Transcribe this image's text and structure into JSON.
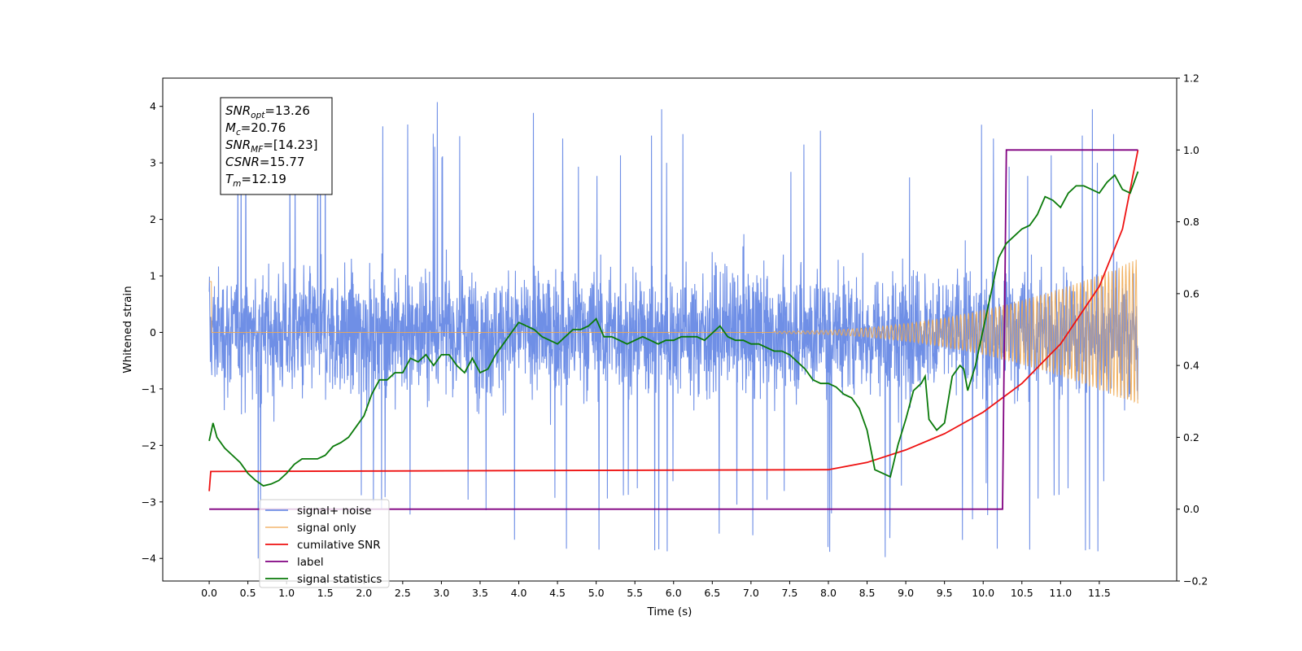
{
  "chart_data": {
    "type": "line",
    "xlabel": "Time (s)",
    "ylabel": "Whitened strain",
    "xlim": [
      -0.6,
      12.5
    ],
    "ylim": [
      -4.4,
      4.5
    ],
    "y2lim": [
      -0.2,
      1.2
    ],
    "x_ticks": [
      "0.0",
      "0.5",
      "1.0",
      "1.5",
      "2.0",
      "2.5",
      "3.0",
      "3.5",
      "4.0",
      "4.5",
      "5.0",
      "5.5",
      "6.0",
      "6.5",
      "7.0",
      "7.5",
      "8.0",
      "8.5",
      "9.0",
      "9.5",
      "10.0",
      "10.5",
      "11.0",
      "11.5"
    ],
    "y_ticks": [
      "−4",
      "−3",
      "−2",
      "−1",
      "0",
      "1",
      "2",
      "3",
      "4"
    ],
    "y2_ticks": [
      "−0.2",
      "0.0",
      "0.2",
      "0.4",
      "0.6",
      "0.8",
      "1.0",
      "1.2"
    ],
    "grid": false,
    "legend_position": "lower-left",
    "annotation": {
      "lines": [
        {
          "sym": "SNR",
          "sub": "opt",
          "val": "=13.26"
        },
        {
          "sym": "M",
          "sub": "c",
          "val": "=20.76"
        },
        {
          "sym": "SNR",
          "sub": "MF",
          "val": "=[14.23]"
        },
        {
          "sym": "CSNR",
          "sub": "",
          "val": "=15.77"
        },
        {
          "sym": "T",
          "sub": "m",
          "val": "=12.19"
        }
      ]
    },
    "colors": {
      "noise": "#6f8fe6",
      "signal": "#f0a850",
      "csnr": "#ee1111",
      "label": "#800080",
      "stats": "#0a7a0a"
    },
    "series": [
      {
        "name": "signal+ noise",
        "axis": "left",
        "description_values": {
          "x_range": [
            0.0,
            12.0
          ],
          "envelope_typical": [
            -2.2,
            2.2
          ],
          "spike_max": 4.1,
          "spike_min": -4.0
        }
      },
      {
        "name": "signal only",
        "axis": "left",
        "description_values": {
          "x_range": [
            0.0,
            12.0
          ],
          "zero_until": 7.5,
          "final_amplitude": 1.3
        }
      },
      {
        "name": "cumilative SNR",
        "axis": "right",
        "x": [
          0.0,
          0.02,
          8.0,
          8.5,
          9.0,
          9.5,
          10.0,
          10.5,
          11.0,
          11.5,
          11.8,
          12.0
        ],
        "values": [
          0.05,
          0.105,
          0.11,
          0.13,
          0.165,
          0.21,
          0.27,
          0.35,
          0.46,
          0.62,
          0.78,
          1.0
        ]
      },
      {
        "name": "label",
        "axis": "right",
        "x": [
          0.0,
          10.25,
          10.3,
          12.0
        ],
        "values": [
          0.0,
          0.0,
          1.0,
          1.0
        ]
      },
      {
        "name": "signal statistics",
        "axis": "right",
        "x": [
          0.0,
          0.05,
          0.1,
          0.2,
          0.3,
          0.4,
          0.5,
          0.6,
          0.7,
          0.8,
          0.9,
          1.0,
          1.1,
          1.2,
          1.3,
          1.4,
          1.5,
          1.6,
          1.7,
          1.8,
          1.9,
          2.0,
          2.1,
          2.2,
          2.3,
          2.4,
          2.5,
          2.6,
          2.7,
          2.8,
          2.9,
          3.0,
          3.1,
          3.2,
          3.3,
          3.4,
          3.5,
          3.6,
          3.7,
          3.8,
          3.9,
          4.0,
          4.1,
          4.2,
          4.3,
          4.4,
          4.5,
          4.6,
          4.7,
          4.8,
          4.9,
          5.0,
          5.1,
          5.2,
          5.3,
          5.4,
          5.5,
          5.6,
          5.7,
          5.8,
          5.9,
          6.0,
          6.1,
          6.2,
          6.3,
          6.4,
          6.5,
          6.6,
          6.7,
          6.8,
          6.9,
          7.0,
          7.1,
          7.2,
          7.3,
          7.4,
          7.5,
          7.6,
          7.7,
          7.8,
          7.9,
          8.0,
          8.1,
          8.2,
          8.3,
          8.4,
          8.5,
          8.6,
          8.7,
          8.8,
          8.9,
          9.0,
          9.1,
          9.2,
          9.25,
          9.3,
          9.4,
          9.5,
          9.6,
          9.7,
          9.75,
          9.8,
          9.9,
          10.0,
          10.1,
          10.2,
          10.3,
          10.4,
          10.5,
          10.6,
          10.7,
          10.8,
          10.9,
          11.0,
          11.1,
          11.2,
          11.3,
          11.4,
          11.5,
          11.6,
          11.7,
          11.8,
          11.9,
          12.0
        ],
        "values": [
          0.19,
          0.24,
          0.2,
          0.17,
          0.15,
          0.13,
          0.1,
          0.08,
          0.065,
          0.07,
          0.08,
          0.1,
          0.125,
          0.14,
          0.14,
          0.14,
          0.15,
          0.175,
          0.185,
          0.2,
          0.23,
          0.26,
          0.32,
          0.36,
          0.36,
          0.38,
          0.38,
          0.42,
          0.41,
          0.43,
          0.4,
          0.43,
          0.43,
          0.4,
          0.38,
          0.42,
          0.38,
          0.39,
          0.43,
          0.46,
          0.49,
          0.52,
          0.51,
          0.5,
          0.48,
          0.47,
          0.46,
          0.48,
          0.5,
          0.5,
          0.51,
          0.53,
          0.48,
          0.48,
          0.47,
          0.46,
          0.47,
          0.48,
          0.47,
          0.46,
          0.47,
          0.47,
          0.48,
          0.48,
          0.48,
          0.47,
          0.49,
          0.51,
          0.48,
          0.47,
          0.47,
          0.46,
          0.46,
          0.45,
          0.44,
          0.44,
          0.43,
          0.41,
          0.39,
          0.36,
          0.35,
          0.35,
          0.34,
          0.32,
          0.31,
          0.28,
          0.22,
          0.11,
          0.1,
          0.09,
          0.18,
          0.25,
          0.33,
          0.35,
          0.37,
          0.25,
          0.22,
          0.24,
          0.37,
          0.4,
          0.39,
          0.33,
          0.4,
          0.5,
          0.6,
          0.7,
          0.74,
          0.76,
          0.78,
          0.79,
          0.82,
          0.87,
          0.86,
          0.84,
          0.88,
          0.9,
          0.9,
          0.89,
          0.88,
          0.91,
          0.93,
          0.89,
          0.88,
          0.94
        ]
      }
    ]
  }
}
